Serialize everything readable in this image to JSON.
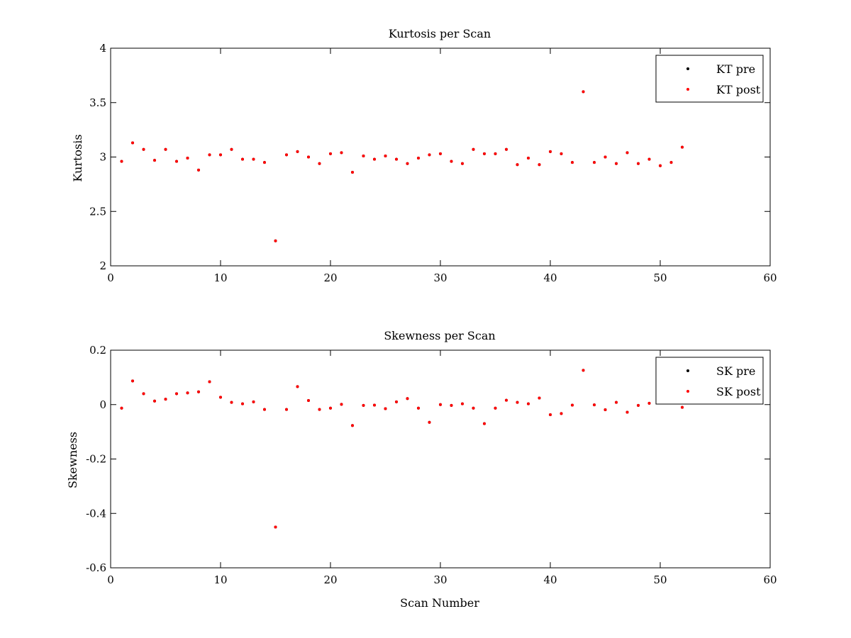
{
  "chart_data": [
    {
      "type": "scatter",
      "title": "Kurtosis per Scan",
      "xlabel": "",
      "ylabel": "Kurtosis",
      "xlim": [
        0,
        60
      ],
      "ylim": [
        2,
        4
      ],
      "xticks": [
        0,
        10,
        20,
        30,
        40,
        50,
        60
      ],
      "yticks": [
        2,
        2.5,
        3,
        3.5,
        4
      ],
      "xtick_labels": [
        "0",
        "10",
        "20",
        "30",
        "40",
        "50",
        "60"
      ],
      "ytick_labels": [
        "2",
        "2.5",
        "3",
        "3.5",
        "4"
      ],
      "grid": false,
      "legend_position": "top-right",
      "x": [
        1,
        2,
        3,
        4,
        5,
        6,
        7,
        8,
        9,
        10,
        11,
        12,
        13,
        14,
        15,
        16,
        17,
        18,
        19,
        20,
        21,
        22,
        23,
        24,
        25,
        26,
        27,
        28,
        29,
        30,
        31,
        32,
        33,
        34,
        35,
        36,
        37,
        38,
        39,
        40,
        41,
        42,
        43,
        44,
        45,
        46,
        47,
        48,
        49,
        50,
        51,
        52
      ],
      "series": [
        {
          "name": "KT pre",
          "color": "#000000",
          "values": [
            2.96,
            3.13,
            3.07,
            2.97,
            3.07,
            2.96,
            2.99,
            2.88,
            3.02,
            3.02,
            3.07,
            2.98,
            2.98,
            2.95,
            2.23,
            3.02,
            3.05,
            3.0,
            2.94,
            3.03,
            3.04,
            2.86,
            3.01,
            2.98,
            3.01,
            2.98,
            2.94,
            2.99,
            3.02,
            3.03,
            2.96,
            2.94,
            3.07,
            3.03,
            3.03,
            3.07,
            2.93,
            2.99,
            2.93,
            3.05,
            3.03,
            2.95,
            3.6,
            2.95,
            3.0,
            2.94,
            3.04,
            2.94,
            2.98,
            2.92,
            2.95,
            3.09
          ]
        },
        {
          "name": "KT post",
          "color": "#ff0000",
          "values": [
            2.96,
            3.13,
            3.07,
            2.97,
            3.07,
            2.96,
            2.99,
            2.88,
            3.02,
            3.02,
            3.07,
            2.98,
            2.98,
            2.95,
            2.23,
            3.02,
            3.05,
            3.0,
            2.94,
            3.03,
            3.04,
            2.86,
            3.01,
            2.98,
            3.01,
            2.98,
            2.94,
            2.99,
            3.02,
            3.03,
            2.96,
            2.94,
            3.07,
            3.03,
            3.03,
            3.07,
            2.93,
            2.99,
            2.93,
            3.05,
            3.03,
            2.95,
            3.6,
            2.95,
            3.0,
            2.94,
            3.04,
            2.94,
            2.98,
            2.92,
            2.95,
            3.09
          ]
        }
      ]
    },
    {
      "type": "scatter",
      "title": "Skewness per Scan",
      "xlabel": "Scan Number",
      "ylabel": "Skewness",
      "xlim": [
        0,
        60
      ],
      "ylim": [
        -0.6,
        0.2
      ],
      "xticks": [
        0,
        10,
        20,
        30,
        40,
        50,
        60
      ],
      "yticks": [
        -0.6,
        -0.4,
        -0.2,
        0,
        0.2
      ],
      "xtick_labels": [
        "0",
        "10",
        "20",
        "30",
        "40",
        "50",
        "60"
      ],
      "ytick_labels": [
        "-0.6",
        "-0.4",
        "-0.2",
        "0",
        "0.2"
      ],
      "grid": false,
      "legend_position": "top-right",
      "x": [
        1,
        2,
        3,
        4,
        5,
        6,
        7,
        8,
        9,
        10,
        11,
        12,
        13,
        14,
        15,
        16,
        17,
        18,
        19,
        20,
        21,
        22,
        23,
        24,
        25,
        26,
        27,
        28,
        29,
        30,
        31,
        32,
        33,
        34,
        35,
        36,
        37,
        38,
        39,
        40,
        41,
        42,
        43,
        44,
        45,
        46,
        47,
        48,
        49,
        50,
        51,
        52
      ],
      "series": [
        {
          "name": "SK pre",
          "color": "#000000",
          "values": [
            -0.013,
            0.087,
            0.04,
            0.013,
            0.02,
            0.04,
            0.043,
            0.047,
            0.084,
            0.027,
            0.008,
            0.003,
            0.01,
            -0.018,
            -0.45,
            -0.018,
            0.066,
            0.015,
            -0.018,
            -0.013,
            0.001,
            -0.077,
            -0.003,
            -0.002,
            -0.015,
            0.01,
            0.022,
            -0.013,
            -0.065,
            0.0,
            -0.003,
            0.003,
            -0.013,
            -0.07,
            -0.013,
            0.016,
            0.008,
            0.003,
            0.024,
            -0.037,
            -0.033,
            -0.002,
            0.126,
            -0.001,
            -0.019,
            0.008,
            -0.028,
            -0.003,
            0.005,
            0.007,
            0.008,
            -0.01
          ]
        },
        {
          "name": "SK post",
          "color": "#ff0000",
          "values": [
            -0.013,
            0.087,
            0.04,
            0.013,
            0.02,
            0.04,
            0.043,
            0.047,
            0.084,
            0.027,
            0.008,
            0.003,
            0.01,
            -0.018,
            -0.45,
            -0.018,
            0.066,
            0.015,
            -0.018,
            -0.013,
            0.001,
            -0.077,
            -0.003,
            -0.002,
            -0.015,
            0.01,
            0.022,
            -0.013,
            -0.065,
            0.0,
            -0.003,
            0.003,
            -0.013,
            -0.07,
            -0.013,
            0.016,
            0.008,
            0.003,
            0.024,
            -0.037,
            -0.033,
            -0.002,
            0.126,
            -0.001,
            -0.019,
            0.008,
            -0.028,
            -0.003,
            0.005,
            0.007,
            0.008,
            -0.01
          ]
        }
      ]
    }
  ]
}
